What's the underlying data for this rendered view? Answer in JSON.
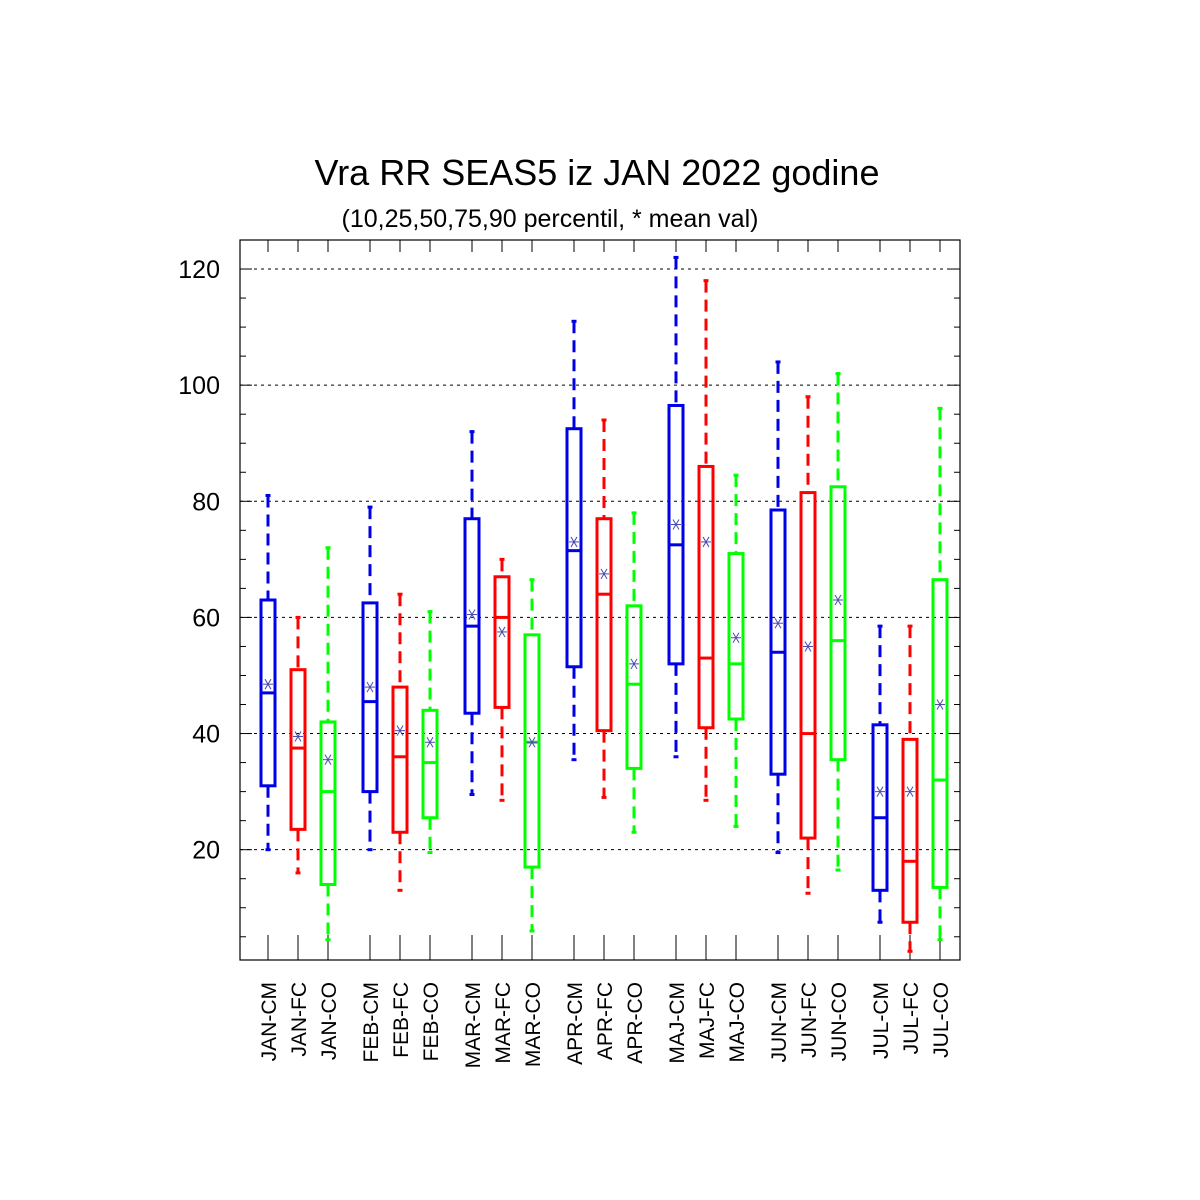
{
  "chart_data": {
    "type": "box",
    "title": "Vra RR SEAS5 iz JAN 2022 godine",
    "subtitle": "(10,25,50,75,90 percentil, * mean val)",
    "xlabel": "",
    "ylabel": "",
    "ylim": [
      1,
      125
    ],
    "yticks": [
      20,
      40,
      60,
      80,
      100,
      120
    ],
    "yminor_step": 5,
    "grid": "horizontal-dashed",
    "series_colors": {
      "CM": "#0000e6",
      "FC": "#ff0000",
      "CO": "#00ff00"
    },
    "categories": [
      "JAN-CM",
      "JAN-FC",
      "JAN-CO",
      "FEB-CM",
      "FEB-FC",
      "FEB-CO",
      "MAR-CM",
      "MAR-FC",
      "MAR-CO",
      "APR-CM",
      "APR-FC",
      "APR-CO",
      "MAJ-CM",
      "MAJ-FC",
      "MAJ-CO",
      "JUN-CM",
      "JUN-FC",
      "JUN-CO",
      "JUL-CM",
      "JUL-FC",
      "JUL-CO"
    ],
    "boxes": [
      {
        "label": "JAN-CM",
        "p10": 20,
        "p25": 31,
        "p50": 47,
        "p75": 63,
        "p90": 81,
        "mean": 48.5
      },
      {
        "label": "JAN-FC",
        "p10": 16,
        "p25": 23.5,
        "p50": 37.5,
        "p75": 51,
        "p90": 60,
        "mean": 39.5
      },
      {
        "label": "JAN-CO",
        "p10": 4.5,
        "p25": 14,
        "p50": 30,
        "p75": 42,
        "p90": 72,
        "mean": 35.5
      },
      {
        "label": "FEB-CM",
        "p10": 20,
        "p25": 30,
        "p50": 45.5,
        "p75": 62.5,
        "p90": 79,
        "mean": 48
      },
      {
        "label": "FEB-FC",
        "p10": 13,
        "p25": 23,
        "p50": 36,
        "p75": 48,
        "p90": 64,
        "mean": 40.5
      },
      {
        "label": "FEB-CO",
        "p10": 19.5,
        "p25": 25.5,
        "p50": 35,
        "p75": 44,
        "p90": 61,
        "mean": 38.5
      },
      {
        "label": "MAR-CM",
        "p10": 29.5,
        "p25": 43.5,
        "p50": 58.5,
        "p75": 77,
        "p90": 92,
        "mean": 60.5
      },
      {
        "label": "MAR-FC",
        "p10": 28.5,
        "p25": 44.5,
        "p50": 60,
        "p75": 67,
        "p90": 70,
        "mean": 57.5
      },
      {
        "label": "MAR-CO",
        "p10": 6,
        "p25": 17,
        "p50": 38.5,
        "p75": 57,
        "p90": 66.5,
        "mean": 38.5
      },
      {
        "label": "APR-CM",
        "p10": 35.5,
        "p25": 51.5,
        "p50": 71.5,
        "p75": 92.5,
        "p90": 111,
        "mean": 73
      },
      {
        "label": "APR-FC",
        "p10": 29,
        "p25": 40.5,
        "p50": 64,
        "p75": 77,
        "p90": 94,
        "mean": 67.5
      },
      {
        "label": "APR-CO",
        "p10": 23,
        "p25": 34,
        "p50": 48.5,
        "p75": 62,
        "p90": 78,
        "mean": 52
      },
      {
        "label": "MAJ-CM",
        "p10": 36,
        "p25": 52,
        "p50": 72.5,
        "p75": 96.5,
        "p90": 122,
        "mean": 76
      },
      {
        "label": "MAJ-FC",
        "p10": 28.5,
        "p25": 41,
        "p50": 53,
        "p75": 86,
        "p90": 118,
        "mean": 73
      },
      {
        "label": "MAJ-CO",
        "p10": 24,
        "p25": 42.5,
        "p50": 52,
        "p75": 71,
        "p90": 84.5,
        "mean": 56.5
      },
      {
        "label": "JUN-CM",
        "p10": 19.5,
        "p25": 33,
        "p50": 54,
        "p75": 78.5,
        "p90": 104,
        "mean": 59
      },
      {
        "label": "JUN-FC",
        "p10": 12.5,
        "p25": 22,
        "p50": 40,
        "p75": 81.5,
        "p90": 98,
        "mean": 55
      },
      {
        "label": "JUN-CO",
        "p10": 16.5,
        "p25": 35.5,
        "p50": 56,
        "p75": 82.5,
        "p90": 102,
        "mean": 63
      },
      {
        "label": "JUL-CM",
        "p10": 7.5,
        "p25": 13,
        "p50": 25.5,
        "p75": 41.5,
        "p90": 58.5,
        "mean": 30
      },
      {
        "label": "JUL-FC",
        "p10": 2.5,
        "p25": 7.5,
        "p50": 18,
        "p75": 39,
        "p90": 58.5,
        "mean": 30
      },
      {
        "label": "JUL-CO",
        "p10": 4.5,
        "p25": 13.5,
        "p50": 32,
        "p75": 66.5,
        "p90": 96,
        "mean": 45
      }
    ],
    "mean_marker_color": "#4a4ab0",
    "mean_marker": "*"
  }
}
